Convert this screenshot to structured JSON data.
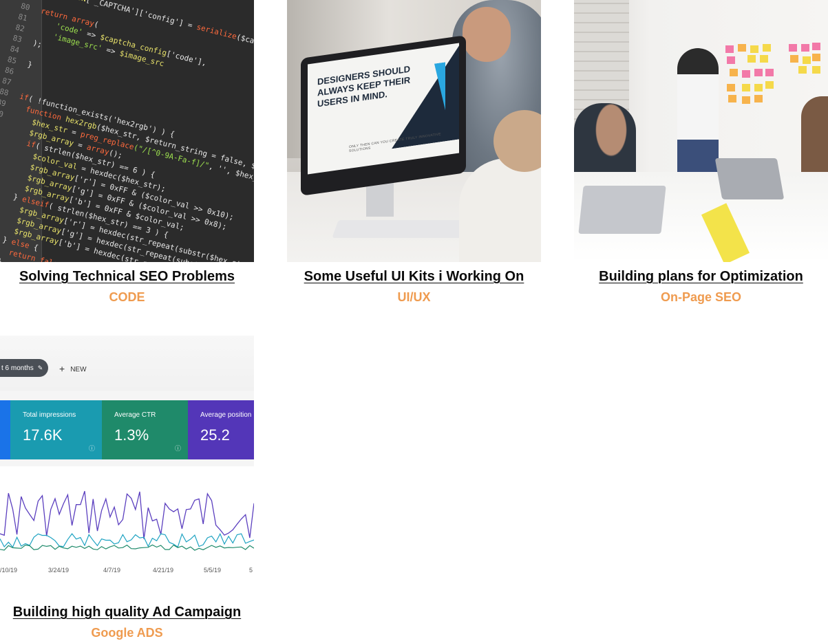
{
  "cards": [
    {
      "title": "Solving Technical SEO Problems",
      "category": "CODE",
      "image": "code-editor-photo"
    },
    {
      "title": "Some Useful UI Kits i Working On",
      "category": "UI/UX",
      "image": "designer-desk-photo",
      "image_text": {
        "headline": "DESIGNERS SHOULD ALWAYS KEEP THEIR USERS IN MIND.",
        "subline": "ONLY THEN CAN YOU CREATE TRULY INNOVATIVE SOLUTIONS"
      }
    },
    {
      "title": "Building plans for Optimization",
      "category": "On-Page SEO",
      "image": "office-sticky-notes-photo"
    },
    {
      "title": "Building high quality Ad Campaign",
      "category": "Google ADS",
      "image": "search-console-analytics-photo",
      "image_text": {
        "range_chip": "t 6 months",
        "new_label": "NEW",
        "metrics": [
          {
            "label": "Total impressions",
            "value": "17.6K"
          },
          {
            "label": "Average CTR",
            "value": "1.3%"
          },
          {
            "label": "Average position",
            "value": "25.2"
          }
        ],
        "x_labels": [
          "/10/19",
          "3/24/19",
          "4/7/19",
          "4/21/19",
          "5/5/19",
          "5"
        ]
      }
    }
  ],
  "colors": {
    "title": "#0b0b0b",
    "category": "#ef9b4f",
    "background": "#ffffff"
  }
}
